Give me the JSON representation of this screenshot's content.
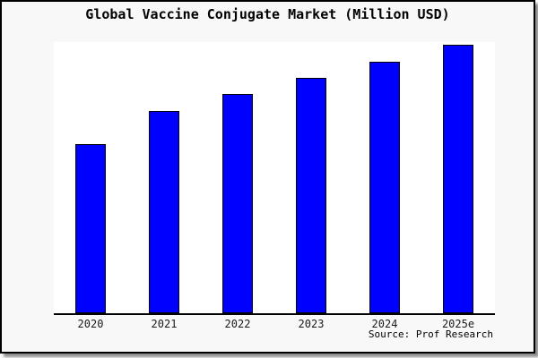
{
  "chart_data": {
    "type": "bar",
    "title": "Global Vaccine Conjugate Market (Million USD)",
    "categories": [
      "2020",
      "2021",
      "2022",
      "2023",
      "2024",
      "2025e"
    ],
    "values": [
      62.9,
      75.2,
      81.5,
      87.7,
      93.7,
      100
    ],
    "values_are_relative_estimates": true,
    "xlabel": "",
    "ylabel": "",
    "ylim": [
      0,
      101
    ],
    "grid": false,
    "legend": false,
    "y_axis_shown": false,
    "bar_color": "#0000ff",
    "bar_border_color": "#000000",
    "background_color": "#f8f8f8",
    "plot_background_color": "#ffffff",
    "source": "Source: Prof Research"
  }
}
